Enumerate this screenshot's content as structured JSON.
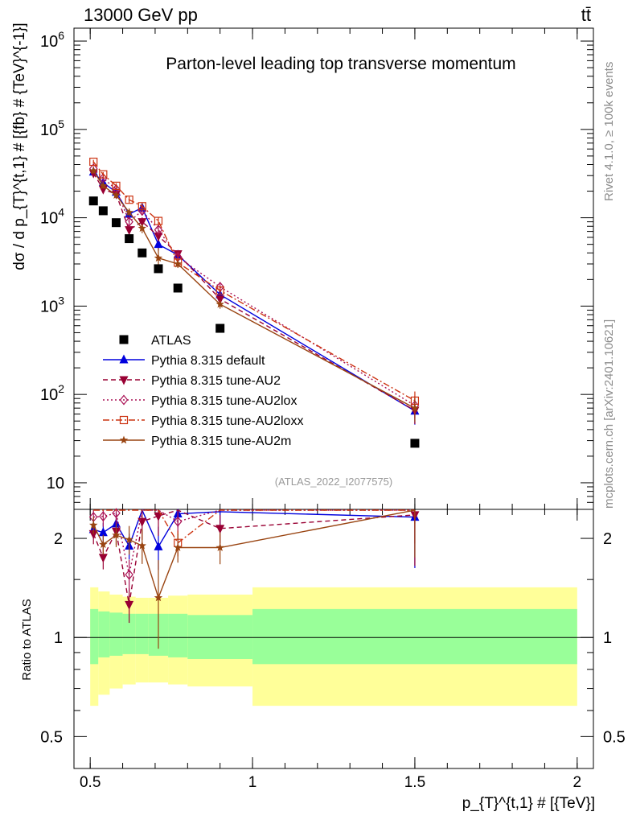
{
  "header": {
    "energy_label": "13000 GeV pp",
    "process_label": "tt̄",
    "side_note_rivet": "Rivet 4.1.0, ≥ 100k events",
    "side_note_mcplots": "mcplots.cern.ch [arXiv:2401.10621]"
  },
  "chart_data": {
    "type": "line",
    "title": "Parton-level leading top transverse momentum",
    "analysis_id": "(ATLAS_2022_I2077575)",
    "xlabel": "p_{T}^{t,1} # [{TeV}]",
    "ylabel": "dσ / d p_{T}^{t,1} # [{fb} # {TeV}^{-1}]",
    "ratio_ylabel": "Ratio to ATLAS",
    "xlim": [
      0.45,
      2.05
    ],
    "ylim": [
      5,
      1400000
    ],
    "y_scale": "log",
    "ratio_ylim": [
      0.4,
      2.45
    ],
    "x_ticks": [
      "0.5",
      "1",
      "1.5",
      "2"
    ],
    "x_tick_values": [
      0.5,
      1,
      1.5,
      2
    ],
    "y_ticks": [
      "10",
      "10^2",
      "10^3",
      "10^4",
      "10^5",
      "10^6"
    ],
    "y_tick_values": [
      10,
      100,
      1000,
      10000,
      100000,
      1000000
    ],
    "ratio_ticks": [
      "0.5",
      "1",
      "2"
    ],
    "ratio_tick_values": [
      0.5,
      1,
      2
    ],
    "legend_position": "bottom-left",
    "x": [
      0.51,
      0.54,
      0.58,
      0.62,
      0.66,
      0.71,
      0.77,
      0.9,
      1.5
    ],
    "x_edges": [
      0.5,
      0.525,
      0.56,
      0.6,
      0.64,
      0.68,
      0.74,
      0.8,
      1.0,
      2.0
    ],
    "reference": {
      "name": "ATLAS",
      "values": [
        15500,
        12000,
        8800,
        5800,
        4000,
        2650,
        1600,
        560,
        28
      ],
      "band_inner": [
        [
          0.83,
          1.22
        ],
        [
          0.87,
          1.2
        ],
        [
          0.88,
          1.19
        ],
        [
          0.89,
          1.18
        ],
        [
          0.89,
          1.18
        ],
        [
          0.88,
          1.18
        ],
        [
          0.87,
          1.18
        ],
        [
          0.86,
          1.17
        ],
        [
          0.83,
          1.22
        ]
      ],
      "band_outer": [
        [
          0.62,
          1.42
        ],
        [
          0.67,
          1.38
        ],
        [
          0.7,
          1.35
        ],
        [
          0.72,
          1.33
        ],
        [
          0.73,
          1.32
        ],
        [
          0.73,
          1.32
        ],
        [
          0.72,
          1.34
        ],
        [
          0.71,
          1.35
        ],
        [
          0.62,
          1.42
        ]
      ]
    },
    "series": [
      {
        "name": "Pythia 8.315 default",
        "color": "#0000dd",
        "dash": "",
        "marker": "triangle-up",
        "values": [
          33000,
          25000,
          19500,
          11000,
          13000,
          5000,
          3800,
          1350,
          65
        ],
        "yerr": [
          0.06,
          0.07,
          0.08,
          0.09,
          0.1,
          0.15,
          0.09,
          0.1,
          0.3
        ]
      },
      {
        "name": "Pythia 8.315 tune-AU2",
        "color": "#990033",
        "dash": "6,4",
        "marker": "triangle-down",
        "values": [
          32000,
          21000,
          18500,
          7300,
          9000,
          6200,
          3900,
          1200,
          66
        ],
        "yerr": [
          0.07,
          0.08,
          0.09,
          0.12,
          0.12,
          0.13,
          0.09,
          0.1,
          0.3
        ]
      },
      {
        "name": "Pythia 8.315 tune-AU2lox",
        "color": "#aa1155",
        "dash": "2,3",
        "marker": "diamond-open",
        "values": [
          36000,
          28000,
          21000,
          9000,
          12000,
          7300,
          3600,
          1650,
          75
        ],
        "yerr": [
          0.06,
          0.07,
          0.08,
          0.11,
          0.1,
          0.12,
          0.09,
          0.09,
          0.28
        ]
      },
      {
        "name": "Pythia 8.315 tune-AU2loxx",
        "color": "#cc3311",
        "dash": "8,3,2,3",
        "marker": "square-open",
        "values": [
          43000,
          31000,
          23000,
          16000,
          13500,
          9200,
          3100,
          1500,
          85
        ],
        "yerr": [
          0.05,
          0.06,
          0.07,
          0.08,
          0.08,
          0.1,
          0.09,
          0.09,
          0.27
        ]
      },
      {
        "name": "Pythia 8.315 tune-AU2m",
        "color": "#994411",
        "dash": "",
        "marker": "star",
        "values": [
          34000,
          23000,
          18000,
          11500,
          7600,
          3500,
          3000,
          1050,
          70
        ],
        "yerr": [
          0.06,
          0.07,
          0.08,
          0.1,
          0.12,
          0.3,
          0.1,
          0.11,
          0.3
        ]
      }
    ]
  }
}
